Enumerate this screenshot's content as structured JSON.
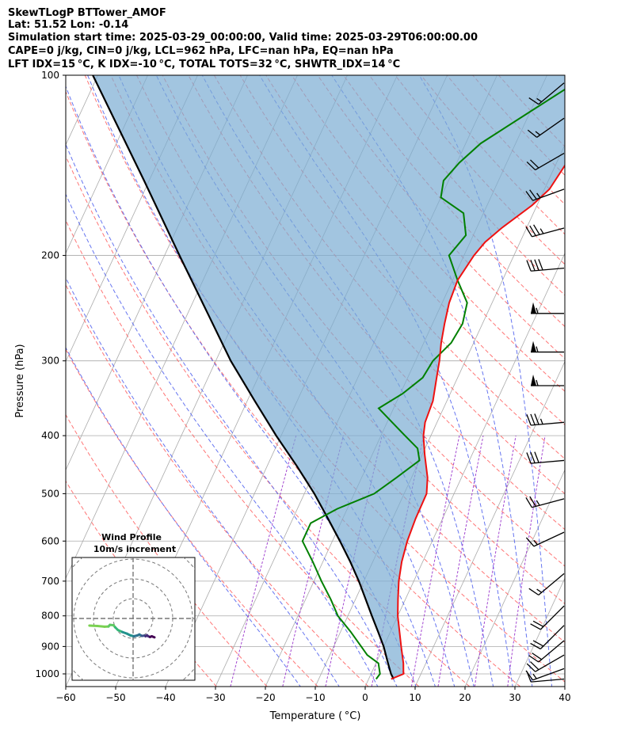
{
  "header": {
    "line1": "SkewTLogP BTTower_AMOF",
    "line2": "Lat: 51.52   Lon: -0.14",
    "line3": "Simulation start time: 2025-03-29_00:00:00, Valid time: 2025-03-29T06:00:00.00",
    "line4": "CAPE=0 j/kg, CIN=0 j/kg, LCL=962 hPa, LFC=nan hPa, EQ=nan hPa",
    "line5": "LFT IDX=15 °C, K IDX=-10 °C, TOTAL TOTS=32 °C, SHWTR_IDX=14 °C"
  },
  "chart_data": {
    "type": "line",
    "subtype": "skew-t log-p",
    "xlabel": "Temperature ( °C)",
    "ylabel": "Pressure (hPa)",
    "xlim": [
      -60,
      40
    ],
    "ylim": [
      1050,
      100
    ],
    "x_ticks": [
      -60,
      -50,
      -40,
      -30,
      -20,
      -10,
      0,
      10,
      20,
      30,
      40
    ],
    "y_ticks": [
      100,
      200,
      300,
      400,
      500,
      600,
      700,
      800,
      900,
      1000
    ],
    "y_scale": "log",
    "grid": true,
    "colors": {
      "temperature": "#ee1111",
      "dewpoint": "#008000",
      "parcel": "#000000",
      "cin_shading": "#7aacd3",
      "dry_adiabats": "#ff6666",
      "moist_adiabats": "#5566ee",
      "isotherms": "#aaaaaa",
      "mixing_ratio": "#9933cc"
    },
    "series": [
      {
        "key": "temperature",
        "points": [
          [
            1020,
            4.5
          ],
          [
            1000,
            6.5
          ],
          [
            960,
            5.5
          ],
          [
            900,
            3.5
          ],
          [
            850,
            1.8
          ],
          [
            800,
            0
          ],
          [
            750,
            -1.5
          ],
          [
            700,
            -3
          ],
          [
            650,
            -4.2
          ],
          [
            600,
            -5
          ],
          [
            550,
            -5.4
          ],
          [
            500,
            -5.5
          ],
          [
            470,
            -6.8
          ],
          [
            430,
            -9.5
          ],
          [
            400,
            -11.5
          ],
          [
            380,
            -12.4
          ],
          [
            350,
            -12.8
          ],
          [
            320,
            -14.2
          ],
          [
            300,
            -15.2
          ],
          [
            280,
            -16.5
          ],
          [
            260,
            -17.6
          ],
          [
            240,
            -18.6
          ],
          [
            220,
            -19
          ],
          [
            200,
            -18
          ],
          [
            190,
            -17
          ],
          [
            180,
            -15
          ],
          [
            165,
            -11
          ],
          [
            155,
            -9
          ],
          [
            140,
            -8
          ],
          [
            130,
            -6.8
          ],
          [
            120,
            -4.5
          ],
          [
            110,
            -2.3
          ],
          [
            100,
            -1.5
          ]
        ]
      },
      {
        "key": "dewpoint",
        "points": [
          [
            1020,
            1.5
          ],
          [
            1000,
            1.8
          ],
          [
            960,
            0.5
          ],
          [
            930,
            -2.5
          ],
          [
            900,
            -4.5
          ],
          [
            850,
            -8
          ],
          [
            800,
            -12
          ],
          [
            750,
            -15
          ],
          [
            700,
            -18.5
          ],
          [
            650,
            -22
          ],
          [
            600,
            -26
          ],
          [
            560,
            -26
          ],
          [
            530,
            -22
          ],
          [
            500,
            -16
          ],
          [
            470,
            -13
          ],
          [
            440,
            -10
          ],
          [
            420,
            -11.5
          ],
          [
            400,
            -15.2
          ],
          [
            380,
            -19
          ],
          [
            360,
            -23
          ],
          [
            340,
            -19.5
          ],
          [
            320,
            -17
          ],
          [
            300,
            -16.5
          ],
          [
            280,
            -14.5
          ],
          [
            260,
            -14
          ],
          [
            240,
            -15
          ],
          [
            220,
            -19
          ],
          [
            200,
            -23
          ],
          [
            185,
            -21.5
          ],
          [
            170,
            -24
          ],
          [
            160,
            -30
          ],
          [
            150,
            -31
          ],
          [
            140,
            -29.5
          ],
          [
            130,
            -27
          ],
          [
            115,
            -20
          ],
          [
            100,
            -12
          ]
        ]
      },
      {
        "key": "parcel",
        "points": [
          [
            1020,
            5
          ],
          [
            1000,
            4
          ],
          [
            962,
            2.5
          ],
          [
            900,
            0
          ],
          [
            850,
            -2.5
          ],
          [
            800,
            -5.2
          ],
          [
            750,
            -8
          ],
          [
            700,
            -11
          ],
          [
            650,
            -14.5
          ],
          [
            600,
            -18.5
          ],
          [
            550,
            -23
          ],
          [
            500,
            -28
          ],
          [
            450,
            -34
          ],
          [
            400,
            -41
          ],
          [
            350,
            -48.5
          ],
          [
            300,
            -57
          ],
          [
            250,
            -66
          ],
          [
            200,
            -77
          ],
          [
            150,
            -91
          ],
          [
            100,
            -111
          ]
        ]
      }
    ],
    "dry_adiabats_theta_K": [
      240,
      250,
      260,
      270,
      280,
      290,
      300,
      310,
      320,
      330,
      340,
      350,
      360,
      370,
      380,
      390,
      400,
      410,
      420,
      430,
      440,
      450,
      460,
      470
    ],
    "moist_adiabats_theta_w_C": [
      -16,
      -8,
      0,
      4,
      8,
      12,
      16,
      20,
      24,
      28,
      32,
      36
    ],
    "mixing_ratio_lines_gkg": [
      0.4,
      1,
      2,
      4,
      7,
      10,
      16,
      24
    ],
    "wind_barbs": [
      {
        "p": 1020,
        "kt": 10,
        "dir": 265
      },
      {
        "p": 980,
        "kt": 15,
        "dir": 250
      },
      {
        "p": 930,
        "kt": 20,
        "dir": 240
      },
      {
        "p": 880,
        "kt": 20,
        "dir": 230
      },
      {
        "p": 830,
        "kt": 20,
        "dir": 225
      },
      {
        "p": 770,
        "kt": 20,
        "dir": 225
      },
      {
        "p": 680,
        "kt": 15,
        "dir": 230
      },
      {
        "p": 580,
        "kt": 15,
        "dir": 245
      },
      {
        "p": 510,
        "kt": 25,
        "dir": 255
      },
      {
        "p": 440,
        "kt": 30,
        "dir": 265
      },
      {
        "p": 380,
        "kt": 35,
        "dir": 265
      },
      {
        "p": 330,
        "kt": 55,
        "dir": 270
      },
      {
        "p": 290,
        "kt": 55,
        "dir": 270
      },
      {
        "p": 250,
        "kt": 55,
        "dir": 270
      },
      {
        "p": 210,
        "kt": 40,
        "dir": 265
      },
      {
        "p": 180,
        "kt": 35,
        "dir": 255
      },
      {
        "p": 155,
        "kt": 25,
        "dir": 250
      },
      {
        "p": 135,
        "kt": 20,
        "dir": 240
      },
      {
        "p": 118,
        "kt": 15,
        "dir": 235
      },
      {
        "p": 103,
        "kt": 15,
        "dir": 230
      }
    ],
    "inset": {
      "title": "Wind Profile",
      "subtitle": "10m/s increment",
      "hodograph_uv": [
        [
          -4.0,
          -24.5
        ],
        [
          -4.2,
          -20.0
        ],
        [
          -4.6,
          -16.0
        ],
        [
          -4.5,
          -13.8
        ],
        [
          -3.6,
          -13.0
        ],
        [
          -3.8,
          -11.0
        ],
        [
          -5.0,
          -10.0
        ],
        [
          -6.5,
          -8.5
        ],
        [
          -7.6,
          -6.0
        ],
        [
          -8.5,
          -3.5
        ],
        [
          -9.5,
          -1.5
        ],
        [
          -10.0,
          0.5
        ],
        [
          -9.5,
          2.5
        ],
        [
          -9.0,
          3.5
        ],
        [
          -9.8,
          5.0
        ],
        [
          -9.6,
          6.5
        ],
        [
          -10.0,
          7.0
        ],
        [
          -9.4,
          7.8
        ],
        [
          -10.0,
          8.5
        ],
        [
          -10.4,
          9.5
        ],
        [
          -10.0,
          10.5
        ],
        [
          -10.6,
          12.0
        ]
      ]
    }
  }
}
